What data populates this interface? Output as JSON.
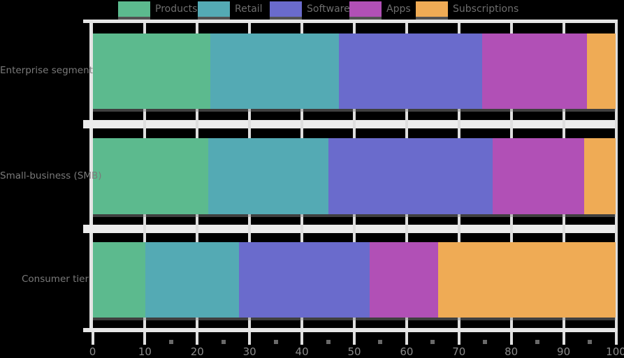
{
  "chart_data": {
    "type": "bar",
    "orientation": "horizontal",
    "stacked": true,
    "percent_stacked": true,
    "title": "",
    "xlabel": "",
    "ylabel": "",
    "xlim": [
      0,
      100
    ],
    "grid": "vertical",
    "legend_position": "top",
    "categories": [
      "Enterprise segment",
      "Small-business (SMB)",
      "Consumer tier"
    ],
    "series": [
      {
        "name": "Products",
        "color": "#5CBA8E",
        "values": [
          22.5,
          22.0,
          10.0
        ]
      },
      {
        "name": "Retail",
        "color": "#54AAB4",
        "values": [
          24.5,
          23.0,
          18.0
        ]
      },
      {
        "name": "Software",
        "color": "#6A6BCC",
        "values": [
          27.5,
          31.5,
          25.0
        ]
      },
      {
        "name": "Apps",
        "color": "#B150B6",
        "values": [
          20.0,
          17.5,
          13.0
        ]
      },
      {
        "name": "Subscriptions",
        "color": "#EFAB55",
        "values": [
          5.5,
          6.0,
          34.0
        ]
      }
    ],
    "x_ticks": [
      "0",
      "10",
      "20",
      "30",
      "40",
      "50",
      "60",
      "70",
      "80",
      "90",
      "100"
    ]
  },
  "style_colors": {
    "background": "#000000",
    "grid": "#DEDEDE",
    "spine": "#E6E6E6",
    "text_gray": "#7A7A7A",
    "tick_label_gray": "#8A8A8A"
  }
}
